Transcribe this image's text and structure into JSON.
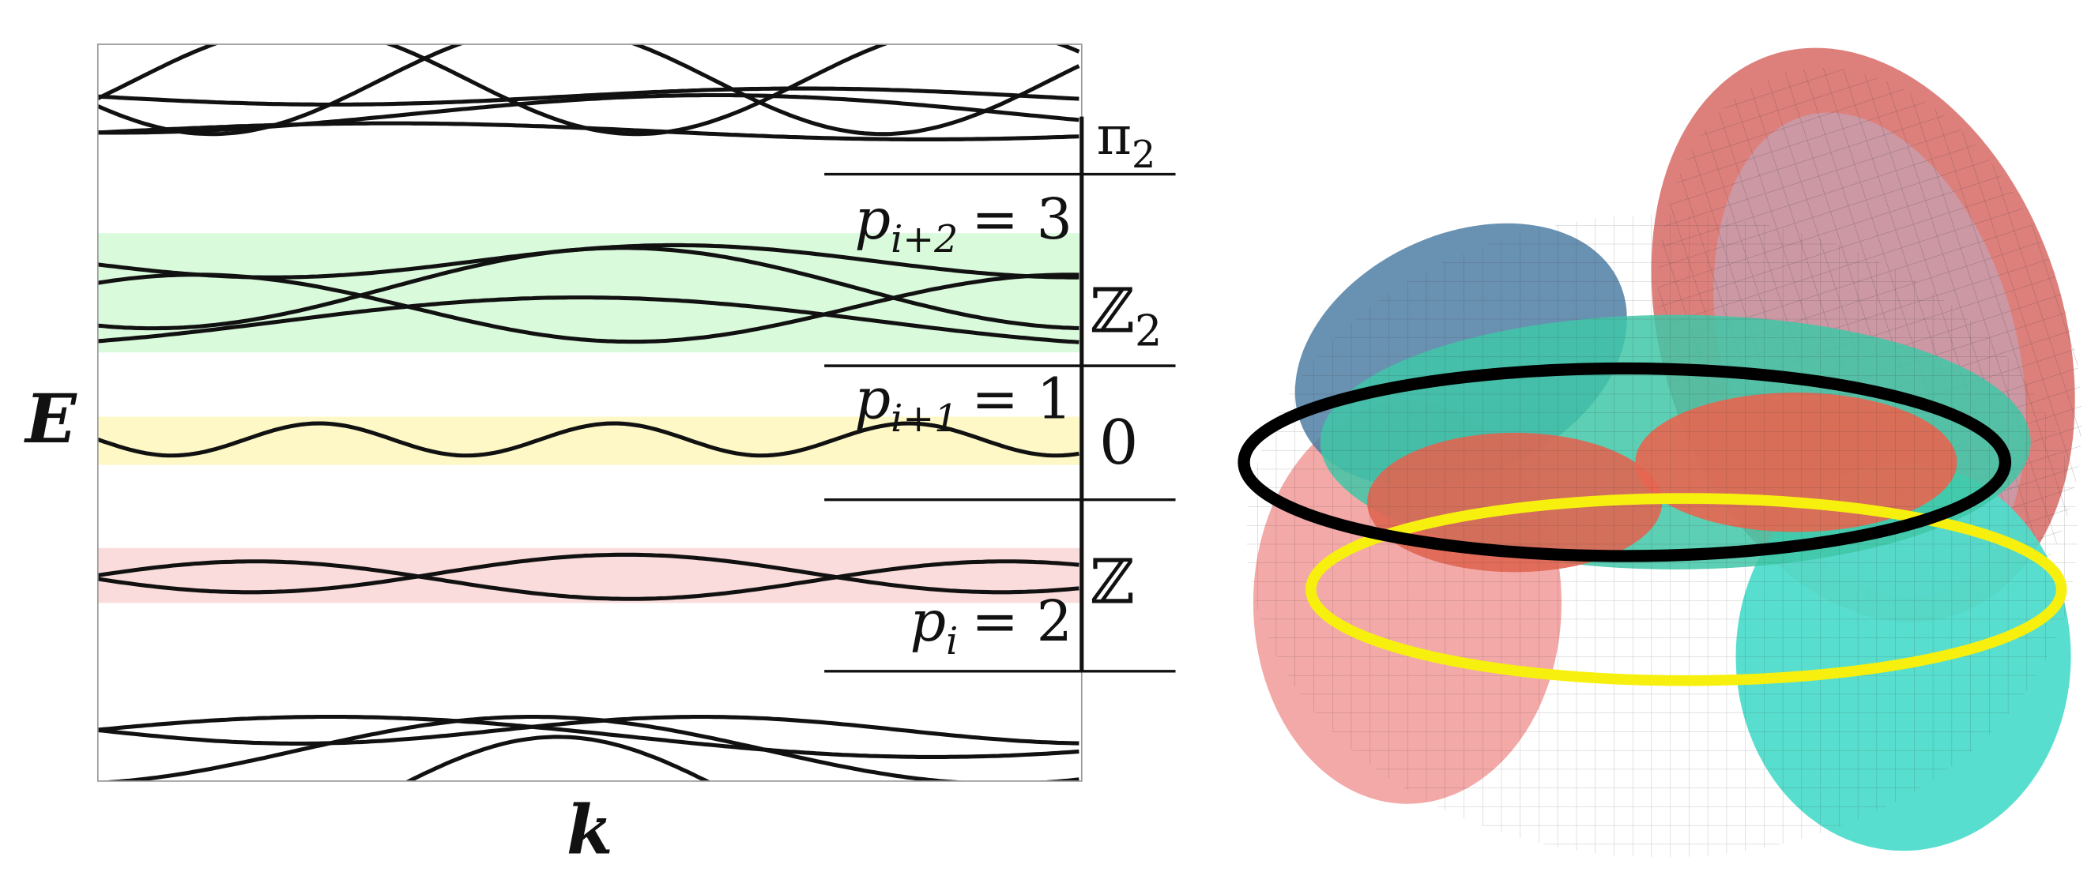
{
  "band_diagram": {
    "y_axis_label": "E",
    "x_axis_label": "k",
    "annotations": [
      {
        "base": "π",
        "sub": "2"
      },
      {
        "base": "p",
        "sub": "i+2",
        "rhs": "= 3"
      },
      {
        "base": "ℤ",
        "sub": "2"
      },
      {
        "base": "p",
        "sub": "i+1",
        "rhs": "= 1"
      },
      {
        "base": "0"
      },
      {
        "base": "ℤ"
      },
      {
        "base": "p",
        "sub": "i",
        "rhs": "= 2"
      }
    ]
  }
}
